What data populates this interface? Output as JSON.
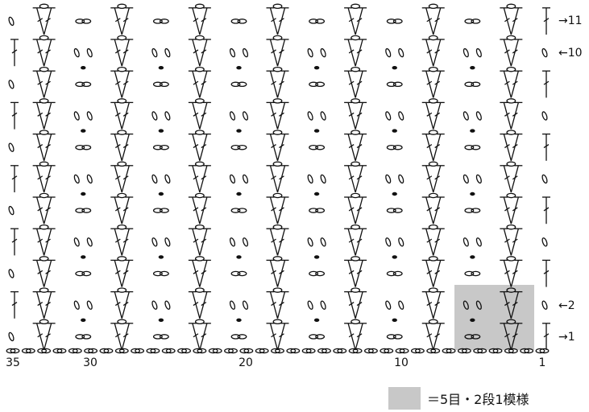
{
  "row_markers": [
    {
      "row": 11,
      "text": "→11"
    },
    {
      "row": 10,
      "text": "←10"
    },
    {
      "row": 2,
      "text": "←2"
    },
    {
      "row": 1,
      "text": "→1"
    }
  ],
  "stitch_labels": [
    {
      "stitch": 35,
      "text": "35"
    },
    {
      "stitch": 30,
      "text": "30"
    },
    {
      "stitch": 20,
      "text": "20"
    },
    {
      "stitch": 10,
      "text": "10"
    },
    {
      "stitch": 1,
      "text": "1"
    }
  ],
  "legend": {
    "text": "＝5目・2段1模様",
    "color": "#c8c8c8"
  },
  "pattern": {
    "stitch_count": 35,
    "row_count": 11,
    "repeat_stitches": 5,
    "repeat_rows": 2
  }
}
